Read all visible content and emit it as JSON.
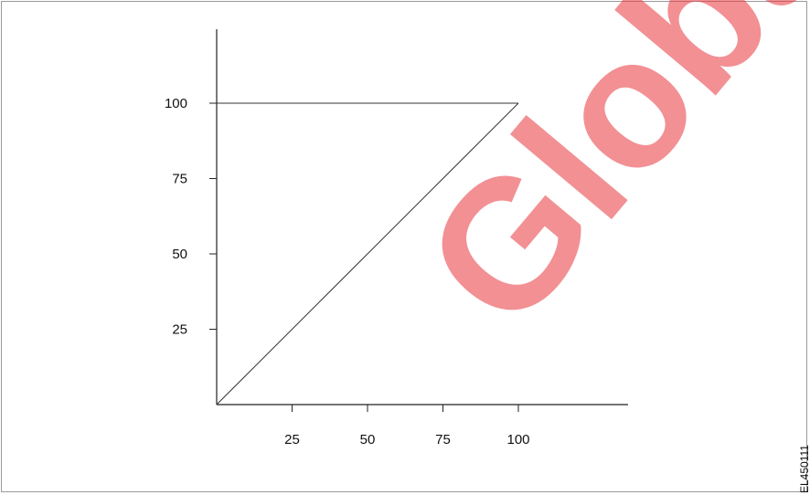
{
  "chart_data": {
    "type": "line",
    "title": "",
    "xlabel": "",
    "ylabel": "",
    "xlim": [
      0,
      125
    ],
    "ylim": [
      0,
      125
    ],
    "x_ticks": [
      25,
      50,
      75,
      100
    ],
    "y_ticks": [
      25,
      50,
      75,
      100
    ],
    "x_tick_labels": [
      "25",
      "50",
      "75",
      "100"
    ],
    "y_tick_labels": [
      "25",
      "50",
      "75",
      "100"
    ],
    "grid": false,
    "series": [
      {
        "x": [
          0,
          100
        ],
        "y": [
          0,
          100
        ]
      },
      {
        "x": [
          0,
          100
        ],
        "y": [
          100,
          100
        ]
      }
    ],
    "line_color": "#333333"
  },
  "figure_id": "EL450111",
  "watermark": {
    "text": "Global I",
    "color": "#e8343c"
  }
}
